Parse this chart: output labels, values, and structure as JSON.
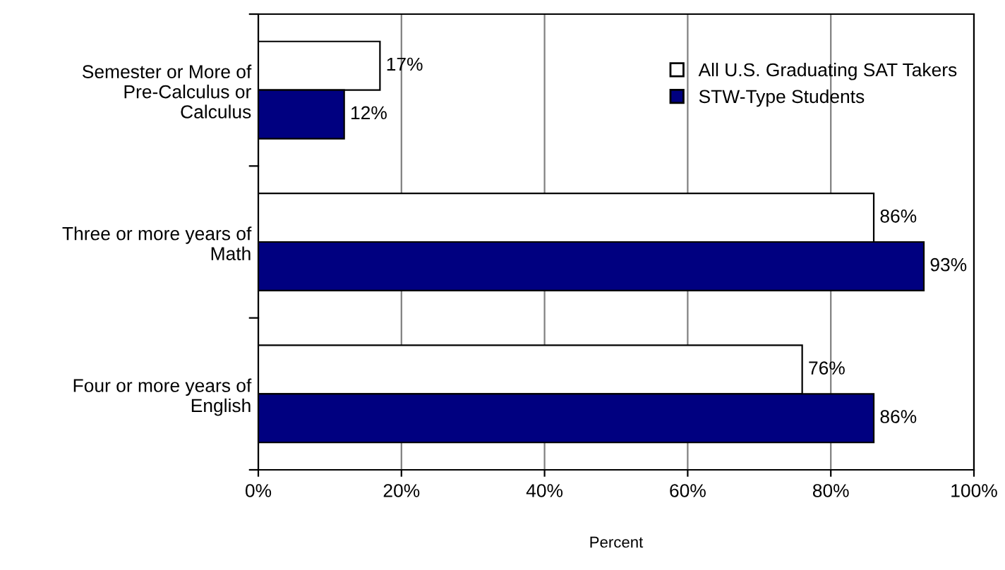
{
  "chart_data": {
    "type": "bar",
    "orientation": "horizontal",
    "xlabel": "Percent",
    "categories": [
      "Semester or More of\nPre-Calculus or\nCalculus",
      "Three or more years of\nMath",
      "Four or more years of\nEnglish"
    ],
    "series": [
      {
        "name": "All U.S. Graduating SAT Takers",
        "color": "#ffffff",
        "values": [
          17,
          86,
          76
        ],
        "value_labels": [
          "17%",
          "86%",
          "76%"
        ]
      },
      {
        "name": "STW-Type Students",
        "color": "#000080",
        "values": [
          12,
          93,
          86
        ],
        "value_labels": [
          "12%",
          "93%",
          "86%"
        ]
      }
    ],
    "xlim": [
      0,
      100
    ],
    "xticks": [
      {
        "value": 0,
        "label": "0%"
      },
      {
        "value": 20,
        "label": "20%"
      },
      {
        "value": 40,
        "label": "40%"
      },
      {
        "value": 60,
        "label": "60%"
      },
      {
        "value": 80,
        "label": "80%"
      },
      {
        "value": 100,
        "label": "100%"
      }
    ],
    "grid": "x",
    "legend": "top right"
  }
}
